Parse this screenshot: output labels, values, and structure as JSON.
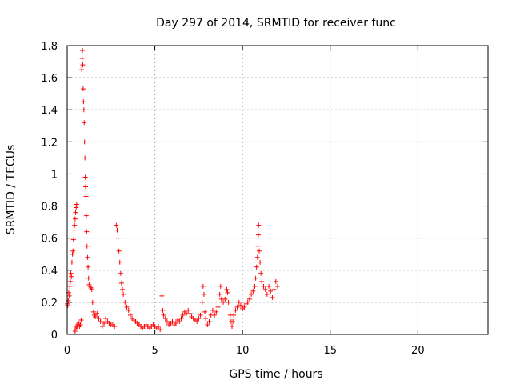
{
  "chart_data": {
    "type": "scatter",
    "title": "Day 297 of 2014, SRMTID for receiver func",
    "xlabel": "GPS time / hours",
    "ylabel": "SRMTID / TECUs",
    "xlim": [
      0,
      24
    ],
    "ylim": [
      0,
      1.8
    ],
    "xticks": [
      0,
      5,
      10,
      15,
      20
    ],
    "xtick_labels": [
      "0",
      "5",
      "10",
      "15",
      "20"
    ],
    "yticks": [
      0,
      0.2,
      0.4,
      0.6,
      0.8,
      1,
      1.2,
      1.4,
      1.6,
      1.8
    ],
    "ytick_labels": [
      "0",
      "0.2",
      "0.4",
      "0.6",
      "0.8",
      "1",
      "1.2",
      "1.4",
      "1.6",
      "1.8"
    ],
    "grid": true,
    "marker": "+",
    "color": "#ff0000",
    "series": [
      {
        "name": "SRMTID",
        "points": [
          [
            0.0,
            0.19
          ],
          [
            0.03,
            0.18
          ],
          [
            0.06,
            0.21
          ],
          [
            0.09,
            0.26
          ],
          [
            0.12,
            0.24
          ],
          [
            0.15,
            0.3
          ],
          [
            0.18,
            0.33
          ],
          [
            0.21,
            0.38
          ],
          [
            0.24,
            0.36
          ],
          [
            0.27,
            0.45
          ],
          [
            0.3,
            0.5
          ],
          [
            0.33,
            0.52
          ],
          [
            0.36,
            0.59
          ],
          [
            0.39,
            0.65
          ],
          [
            0.42,
            0.68
          ],
          [
            0.45,
            0.72
          ],
          [
            0.48,
            0.76
          ],
          [
            0.51,
            0.79
          ],
          [
            0.54,
            0.81
          ],
          [
            0.45,
            0.02
          ],
          [
            0.5,
            0.04
          ],
          [
            0.55,
            0.05
          ],
          [
            0.6,
            0.06
          ],
          [
            0.65,
            0.07
          ],
          [
            0.7,
            0.05
          ],
          [
            0.75,
            0.06
          ],
          [
            0.8,
            0.09
          ],
          [
            0.83,
            1.65
          ],
          [
            0.85,
            1.72
          ],
          [
            0.87,
            1.77
          ],
          [
            0.89,
            1.68
          ],
          [
            0.91,
            1.53
          ],
          [
            0.93,
            1.45
          ],
          [
            0.95,
            1.4
          ],
          [
            0.97,
            1.32
          ],
          [
            0.99,
            1.2
          ],
          [
            1.01,
            1.1
          ],
          [
            1.03,
            0.98
          ],
          [
            1.05,
            0.92
          ],
          [
            1.07,
            0.86
          ],
          [
            1.09,
            0.74
          ],
          [
            1.11,
            0.64
          ],
          [
            1.13,
            0.55
          ],
          [
            1.16,
            0.48
          ],
          [
            1.19,
            0.42
          ],
          [
            1.22,
            0.35
          ],
          [
            1.25,
            0.31
          ],
          [
            1.3,
            0.3
          ],
          [
            1.35,
            0.29
          ],
          [
            1.4,
            0.28
          ],
          [
            1.45,
            0.2
          ],
          [
            1.5,
            0.14
          ],
          [
            1.55,
            0.12
          ],
          [
            1.6,
            0.11
          ],
          [
            1.7,
            0.13
          ],
          [
            1.8,
            0.1
          ],
          [
            1.9,
            0.08
          ],
          [
            2.0,
            0.05
          ],
          [
            2.1,
            0.07
          ],
          [
            2.2,
            0.1
          ],
          [
            2.3,
            0.08
          ],
          [
            2.4,
            0.07
          ],
          [
            2.5,
            0.06
          ],
          [
            2.6,
            0.06
          ],
          [
            2.7,
            0.05
          ],
          [
            2.8,
            0.68
          ],
          [
            2.85,
            0.65
          ],
          [
            2.9,
            0.6
          ],
          [
            2.95,
            0.52
          ],
          [
            3.0,
            0.45
          ],
          [
            3.05,
            0.38
          ],
          [
            3.1,
            0.32
          ],
          [
            3.15,
            0.28
          ],
          [
            3.2,
            0.25
          ],
          [
            3.3,
            0.2
          ],
          [
            3.4,
            0.17
          ],
          [
            3.5,
            0.15
          ],
          [
            3.6,
            0.12
          ],
          [
            3.7,
            0.1
          ],
          [
            3.8,
            0.09
          ],
          [
            3.9,
            0.08
          ],
          [
            4.0,
            0.07
          ],
          [
            4.1,
            0.06
          ],
          [
            4.2,
            0.05
          ],
          [
            4.3,
            0.04
          ],
          [
            4.4,
            0.05
          ],
          [
            4.5,
            0.06
          ],
          [
            4.6,
            0.05
          ],
          [
            4.7,
            0.04
          ],
          [
            4.8,
            0.05
          ],
          [
            4.9,
            0.06
          ],
          [
            5.0,
            0.05
          ],
          [
            5.1,
            0.04
          ],
          [
            5.2,
            0.05
          ],
          [
            5.3,
            0.03
          ],
          [
            5.4,
            0.24
          ],
          [
            5.45,
            0.15
          ],
          [
            5.5,
            0.12
          ],
          [
            5.6,
            0.1
          ],
          [
            5.7,
            0.08
          ],
          [
            5.8,
            0.06
          ],
          [
            5.9,
            0.07
          ],
          [
            6.0,
            0.08
          ],
          [
            6.1,
            0.06
          ],
          [
            6.2,
            0.07
          ],
          [
            6.3,
            0.09
          ],
          [
            6.4,
            0.08
          ],
          [
            6.5,
            0.1
          ],
          [
            6.6,
            0.12
          ],
          [
            6.7,
            0.14
          ],
          [
            6.8,
            0.13
          ],
          [
            6.9,
            0.15
          ],
          [
            7.0,
            0.13
          ],
          [
            7.1,
            0.11
          ],
          [
            7.2,
            0.1
          ],
          [
            7.3,
            0.09
          ],
          [
            7.4,
            0.08
          ],
          [
            7.5,
            0.1
          ],
          [
            7.6,
            0.12
          ],
          [
            7.7,
            0.2
          ],
          [
            7.75,
            0.3
          ],
          [
            7.8,
            0.25
          ],
          [
            7.85,
            0.14
          ],
          [
            7.9,
            0.1
          ],
          [
            8.0,
            0.06
          ],
          [
            8.1,
            0.08
          ],
          [
            8.2,
            0.12
          ],
          [
            8.3,
            0.15
          ],
          [
            8.4,
            0.12
          ],
          [
            8.5,
            0.14
          ],
          [
            8.6,
            0.17
          ],
          [
            8.7,
            0.25
          ],
          [
            8.75,
            0.3
          ],
          [
            8.8,
            0.22
          ],
          [
            8.9,
            0.2
          ],
          [
            9.0,
            0.22
          ],
          [
            9.1,
            0.28
          ],
          [
            9.15,
            0.26
          ],
          [
            9.2,
            0.2
          ],
          [
            9.3,
            0.12
          ],
          [
            9.35,
            0.08
          ],
          [
            9.4,
            0.05
          ],
          [
            9.45,
            0.08
          ],
          [
            9.5,
            0.12
          ],
          [
            9.6,
            0.15
          ],
          [
            9.7,
            0.17
          ],
          [
            9.8,
            0.2
          ],
          [
            9.9,
            0.18
          ],
          [
            10.0,
            0.16
          ],
          [
            10.1,
            0.17
          ],
          [
            10.2,
            0.19
          ],
          [
            10.3,
            0.2
          ],
          [
            10.4,
            0.22
          ],
          [
            10.5,
            0.25
          ],
          [
            10.6,
            0.27
          ],
          [
            10.7,
            0.3
          ],
          [
            10.75,
            0.35
          ],
          [
            10.8,
            0.42
          ],
          [
            10.85,
            0.48
          ],
          [
            10.88,
            0.55
          ],
          [
            10.9,
            0.62
          ],
          [
            10.92,
            0.68
          ],
          [
            10.95,
            0.52
          ],
          [
            11.0,
            0.45
          ],
          [
            11.05,
            0.38
          ],
          [
            11.1,
            0.33
          ],
          [
            11.2,
            0.3
          ],
          [
            11.3,
            0.28
          ],
          [
            11.4,
            0.25
          ],
          [
            11.5,
            0.3
          ],
          [
            11.6,
            0.27
          ],
          [
            11.7,
            0.23
          ],
          [
            11.8,
            0.28
          ],
          [
            11.9,
            0.33
          ],
          [
            12.0,
            0.3
          ]
        ]
      }
    ]
  }
}
